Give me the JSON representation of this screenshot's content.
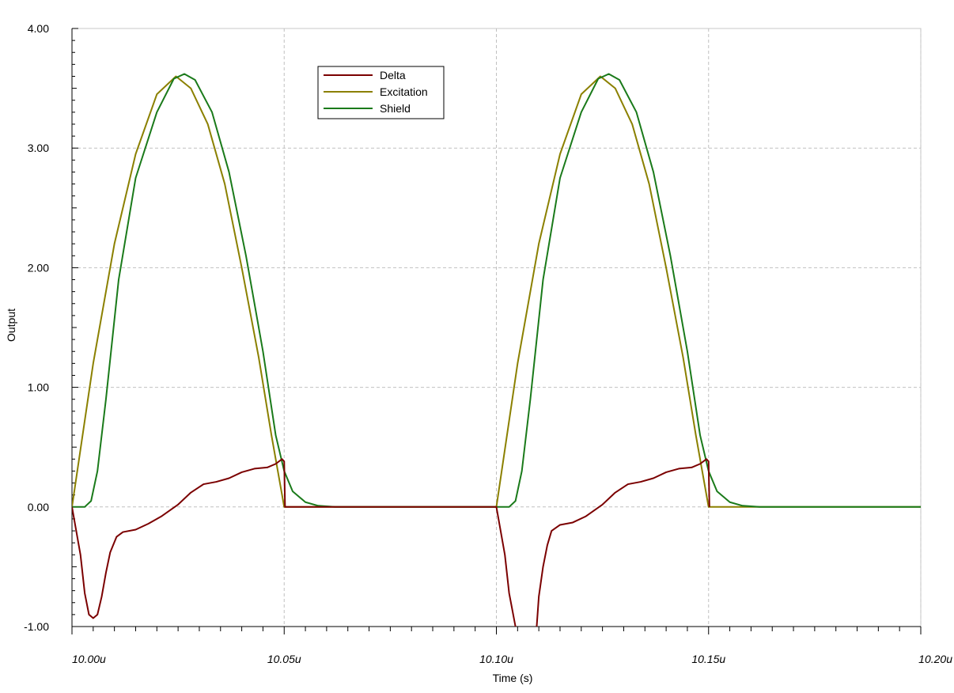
{
  "chart_data": {
    "type": "line",
    "xlabel": "Time (s)",
    "ylabel": "Output",
    "xlim": [
      10.0,
      10.2
    ],
    "ylim": [
      -1.0,
      4.0
    ],
    "x_tick_labels": [
      "10.00u",
      "10.05u",
      "10.10u",
      "10.15u",
      "10.20u"
    ],
    "y_tick_labels": [
      "4.00",
      "3.00",
      "2.00",
      "1.00",
      "0.00",
      "-1.00"
    ],
    "x_ticks": [
      10.0,
      10.05,
      10.1,
      10.15,
      10.2
    ],
    "y_ticks": [
      4.0,
      3.0,
      2.0,
      1.0,
      0.0,
      -1.0
    ],
    "grid": true,
    "legend_position": "top-center",
    "series": [
      {
        "name": "Delta",
        "color": "#7b0000",
        "points": [
          [
            10.0,
            0.0
          ],
          [
            10.002,
            -0.4
          ],
          [
            10.003,
            -0.72
          ],
          [
            10.004,
            -0.9
          ],
          [
            10.005,
            -0.93
          ],
          [
            10.006,
            -0.9
          ],
          [
            10.007,
            -0.75
          ],
          [
            10.008,
            -0.55
          ],
          [
            10.009,
            -0.38
          ],
          [
            10.0105,
            -0.25
          ],
          [
            10.012,
            -0.21
          ],
          [
            10.015,
            -0.19
          ],
          [
            10.018,
            -0.14
          ],
          [
            10.021,
            -0.08
          ],
          [
            10.025,
            0.02
          ],
          [
            10.028,
            0.12
          ],
          [
            10.031,
            0.19
          ],
          [
            10.034,
            0.21
          ],
          [
            10.037,
            0.24
          ],
          [
            10.04,
            0.29
          ],
          [
            10.043,
            0.32
          ],
          [
            10.046,
            0.33
          ],
          [
            10.048,
            0.36
          ],
          [
            10.0495,
            0.4
          ],
          [
            10.05,
            0.38
          ],
          [
            10.0502,
            0.0
          ],
          [
            10.1,
            0.0
          ],
          [
            10.102,
            -0.4
          ],
          [
            10.103,
            -0.72
          ],
          [
            10.1045,
            -1.0
          ]
        ],
        "points_segment_2": [
          [
            10.1095,
            -1.0
          ],
          [
            10.11,
            -0.75
          ],
          [
            10.111,
            -0.5
          ],
          [
            10.112,
            -0.32
          ],
          [
            10.113,
            -0.2
          ],
          [
            10.115,
            -0.15
          ],
          [
            10.118,
            -0.13
          ],
          [
            10.121,
            -0.08
          ],
          [
            10.125,
            0.02
          ],
          [
            10.128,
            0.12
          ],
          [
            10.131,
            0.19
          ],
          [
            10.134,
            0.21
          ],
          [
            10.137,
            0.24
          ],
          [
            10.14,
            0.29
          ],
          [
            10.143,
            0.32
          ],
          [
            10.146,
            0.33
          ],
          [
            10.148,
            0.36
          ],
          [
            10.1495,
            0.4
          ],
          [
            10.15,
            0.38
          ],
          [
            10.1502,
            0.0
          ]
        ]
      },
      {
        "name": "Excitation",
        "color": "#8b8000",
        "points": [
          [
            10.0,
            0.0
          ],
          [
            10.005,
            1.2
          ],
          [
            10.01,
            2.2
          ],
          [
            10.015,
            2.95
          ],
          [
            10.02,
            3.45
          ],
          [
            10.0245,
            3.6
          ],
          [
            10.028,
            3.5
          ],
          [
            10.032,
            3.2
          ],
          [
            10.036,
            2.7
          ],
          [
            10.04,
            2.0
          ],
          [
            10.044,
            1.25
          ],
          [
            10.047,
            0.6
          ],
          [
            10.05,
            0.0
          ],
          [
            10.1,
            0.0
          ],
          [
            10.105,
            1.2
          ],
          [
            10.11,
            2.2
          ],
          [
            10.115,
            2.95
          ],
          [
            10.12,
            3.45
          ],
          [
            10.1245,
            3.6
          ],
          [
            10.128,
            3.5
          ],
          [
            10.132,
            3.2
          ],
          [
            10.136,
            2.7
          ],
          [
            10.14,
            2.0
          ],
          [
            10.144,
            1.25
          ],
          [
            10.147,
            0.6
          ],
          [
            10.15,
            0.0
          ],
          [
            10.2,
            0.0
          ]
        ]
      },
      {
        "name": "Shield",
        "color": "#1a7a1a",
        "points": [
          [
            10.0,
            0.0
          ],
          [
            10.003,
            0.0
          ],
          [
            10.0045,
            0.05
          ],
          [
            10.006,
            0.3
          ],
          [
            10.008,
            0.9
          ],
          [
            10.011,
            1.9
          ],
          [
            10.015,
            2.75
          ],
          [
            10.02,
            3.3
          ],
          [
            10.024,
            3.58
          ],
          [
            10.0265,
            3.62
          ],
          [
            10.029,
            3.57
          ],
          [
            10.033,
            3.3
          ],
          [
            10.037,
            2.8
          ],
          [
            10.041,
            2.1
          ],
          [
            10.045,
            1.3
          ],
          [
            10.048,
            0.6
          ],
          [
            10.05,
            0.3
          ],
          [
            10.052,
            0.13
          ],
          [
            10.055,
            0.04
          ],
          [
            10.058,
            0.01
          ],
          [
            10.062,
            0.0
          ],
          [
            10.1,
            0.0
          ],
          [
            10.103,
            0.0
          ],
          [
            10.1045,
            0.05
          ],
          [
            10.106,
            0.3
          ],
          [
            10.108,
            0.9
          ],
          [
            10.111,
            1.9
          ],
          [
            10.115,
            2.75
          ],
          [
            10.12,
            3.3
          ],
          [
            10.124,
            3.58
          ],
          [
            10.1265,
            3.62
          ],
          [
            10.129,
            3.57
          ],
          [
            10.133,
            3.3
          ],
          [
            10.137,
            2.8
          ],
          [
            10.141,
            2.1
          ],
          [
            10.145,
            1.3
          ],
          [
            10.148,
            0.6
          ],
          [
            10.15,
            0.3
          ],
          [
            10.152,
            0.13
          ],
          [
            10.155,
            0.04
          ],
          [
            10.158,
            0.01
          ],
          [
            10.162,
            0.0
          ],
          [
            10.2,
            0.0
          ]
        ]
      }
    ]
  }
}
